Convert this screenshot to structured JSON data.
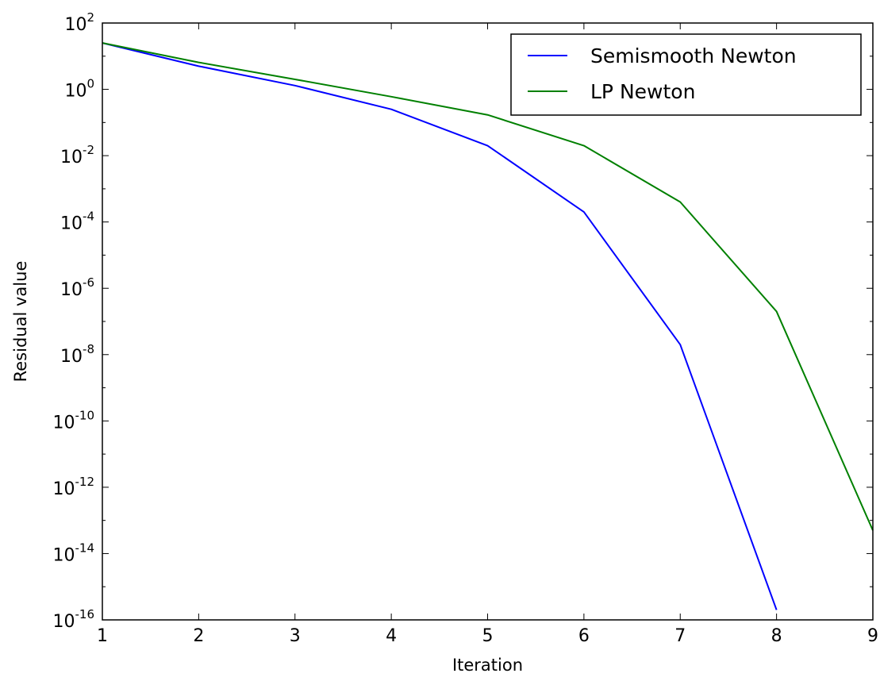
{
  "chart_data": {
    "type": "line",
    "title": "",
    "xlabel": "Iteration",
    "ylabel": "Residual value",
    "xlim": [
      1,
      9
    ],
    "ylim": [
      1e-16,
      100
    ],
    "yscale": "log",
    "grid": false,
    "legend_position": "top-right",
    "x_ticks": [
      "1",
      "2",
      "3",
      "4",
      "5",
      "6",
      "7",
      "8",
      "9"
    ],
    "y_ticks": [
      {
        "base": "10",
        "exp": "2"
      },
      {
        "base": "10",
        "exp": "0"
      },
      {
        "base": "10",
        "exp": "-2"
      },
      {
        "base": "10",
        "exp": "-4"
      },
      {
        "base": "10",
        "exp": "-6"
      },
      {
        "base": "10",
        "exp": "-8"
      },
      {
        "base": "10",
        "exp": "-10"
      },
      {
        "base": "10",
        "exp": "-12"
      },
      {
        "base": "10",
        "exp": "-14"
      },
      {
        "base": "10",
        "exp": "-16"
      }
    ],
    "series": [
      {
        "name": "Semismooth Newton",
        "color": "#0000ff",
        "x": [
          1,
          2,
          3,
          4,
          5,
          6,
          7,
          8
        ],
        "y": [
          25,
          5,
          1.3,
          0.25,
          0.02,
          0.0002,
          2e-08,
          2e-16
        ]
      },
      {
        "name": "LP Newton",
        "color": "#008000",
        "x": [
          1,
          2,
          3,
          4,
          5,
          6,
          7,
          8,
          9
        ],
        "y": [
          25,
          6.5,
          2,
          0.6,
          0.17,
          0.02,
          0.0004,
          2e-07,
          5e-14
        ]
      }
    ]
  }
}
